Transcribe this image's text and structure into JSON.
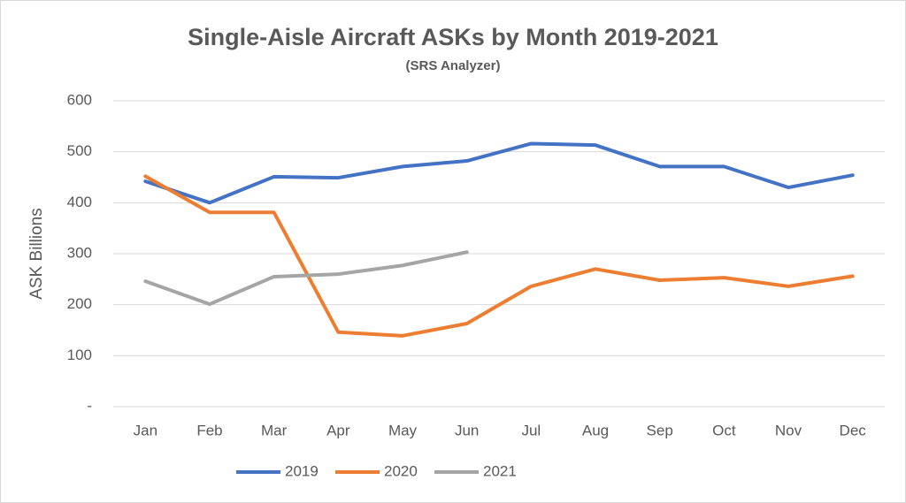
{
  "chart_data": {
    "type": "line",
    "title": "Single-Aisle Aircraft ASKs by Month 2019-2021",
    "subtitle": "(SRS Analyzer)",
    "y_label": "ASK Billions",
    "categories": [
      "Jan",
      "Feb",
      "Mar",
      "Apr",
      "May",
      "Jun",
      "Jul",
      "Aug",
      "Sep",
      "Oct",
      "Nov",
      "Dec"
    ],
    "series": [
      {
        "name": "2019",
        "color": "#4472c4",
        "values": [
          442,
          400,
          451,
          449,
          471,
          482,
          516,
          513,
          471,
          471,
          430,
          454
        ]
      },
      {
        "name": "2020",
        "color": "#ed7d31",
        "values": [
          452,
          381,
          381,
          146,
          139,
          163,
          236,
          270,
          248,
          253,
          236,
          256
        ]
      },
      {
        "name": "2021",
        "color": "#a5a5a5",
        "values": [
          246,
          201,
          255,
          260,
          277,
          303,
          null,
          null,
          null,
          null,
          null,
          null
        ]
      }
    ],
    "ylim": [
      0,
      600
    ],
    "yticks": [
      {
        "value": 0,
        "label": "-"
      },
      100,
      200,
      300,
      400,
      500,
      600
    ],
    "grid": true,
    "legend": "bottom"
  }
}
